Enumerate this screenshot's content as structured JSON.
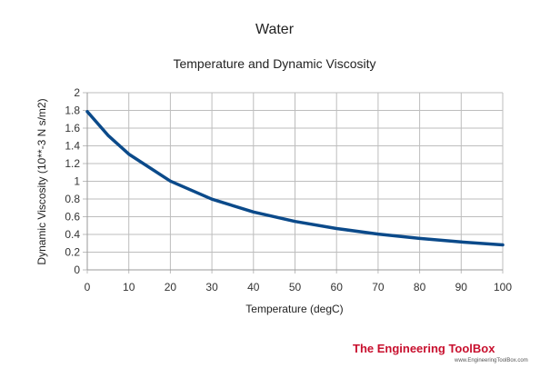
{
  "chart_data": {
    "type": "line",
    "title": "Water",
    "subtitle": "Temperature and Dynamic Viscosity",
    "xlabel": "Temperature (degC)",
    "ylabel": "Dynamic Viscosity (10**-3 N s/m2)",
    "xlim": [
      0,
      100
    ],
    "ylim": [
      0,
      2
    ],
    "xticks": [
      "0",
      "10",
      "20",
      "30",
      "40",
      "50",
      "60",
      "70",
      "80",
      "90",
      "100"
    ],
    "yticks": [
      "0",
      "0.2",
      "0.4",
      "0.6",
      "0.8",
      "1",
      "1.2",
      "1.4",
      "1.6",
      "1.8",
      "2"
    ],
    "grid": true,
    "legend": "none",
    "series": [
      {
        "color": "#0b4a8a",
        "x": [
          0,
          5,
          10,
          20,
          30,
          40,
          50,
          60,
          70,
          80,
          90,
          100
        ],
        "y": [
          1.787,
          1.519,
          1.307,
          1.002,
          0.798,
          0.653,
          0.547,
          0.467,
          0.404,
          0.355,
          0.315,
          0.282
        ]
      }
    ]
  },
  "branding": {
    "logo_text": "The Engineering ToolBox",
    "logo_url": "www.EngineeringToolBox.com"
  }
}
